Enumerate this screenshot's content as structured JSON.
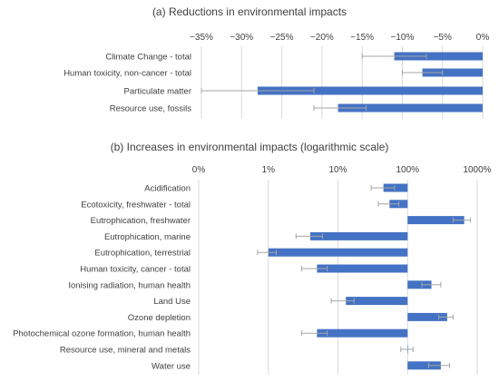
{
  "chart_data": [
    {
      "type": "bar",
      "orientation": "horizontal",
      "title": "(a) Reductions in environmental impacts",
      "xlabel": "",
      "ylabel": "",
      "x_tick_labels": [
        "−35%",
        "−30%",
        "−25%",
        "−20%",
        "−15%",
        "−10%",
        "−5%",
        "0%"
      ],
      "xlim": [
        -35,
        0
      ],
      "grid": true,
      "categories": [
        "Climate Change - total",
        "Human toxicity, non-cancer - total",
        "Particulate matter",
        "Resource use, fossils"
      ],
      "values": [
        -11,
        -7.5,
        -28,
        -18
      ],
      "error_ranges": [
        [
          -15,
          -7
        ],
        [
          -10,
          -5
        ],
        [
          -35,
          -21
        ],
        [
          -21,
          -14.5
        ]
      ],
      "bar_color": "#4472c4"
    },
    {
      "type": "bar",
      "orientation": "horizontal",
      "title": "(b) Increases in environmental impacts (logarithmic scale)",
      "xlabel": "",
      "ylabel": "",
      "x_scale": "log",
      "x_tick_labels": [
        "0%",
        "1%",
        "10%",
        "100%",
        "1000%"
      ],
      "x_tick_values": [
        0.1,
        1,
        10,
        100,
        1000
      ],
      "xlim": [
        0.1,
        1000
      ],
      "grid": true,
      "categories": [
        "Acidification",
        "Ecotoxicity, freshwater - total",
        "Eutrophication, freshwater",
        "Eutrophication, marine",
        "Eutrophication, terrestrial",
        "Human toxicity, cancer - total",
        "Ionising radiation, human health",
        "Land Use",
        "Ozone depletion",
        "Photochemical ozone formation, human health",
        "Resource use, mineral and metals",
        "Water use"
      ],
      "values": [
        45,
        55,
        650,
        4,
        1,
        5,
        220,
        13,
        370,
        5,
        100,
        300
      ],
      "error_ranges": [
        [
          30,
          65
        ],
        [
          38,
          75
        ],
        [
          450,
          800
        ],
        [
          2.5,
          6
        ],
        [
          0.7,
          1.3
        ],
        [
          3,
          7
        ],
        [
          160,
          300
        ],
        [
          8,
          17
        ],
        [
          280,
          450
        ],
        [
          3,
          7
        ],
        [
          80,
          120
        ],
        [
          200,
          400
        ]
      ],
      "bar_color": "#4472c4"
    }
  ]
}
